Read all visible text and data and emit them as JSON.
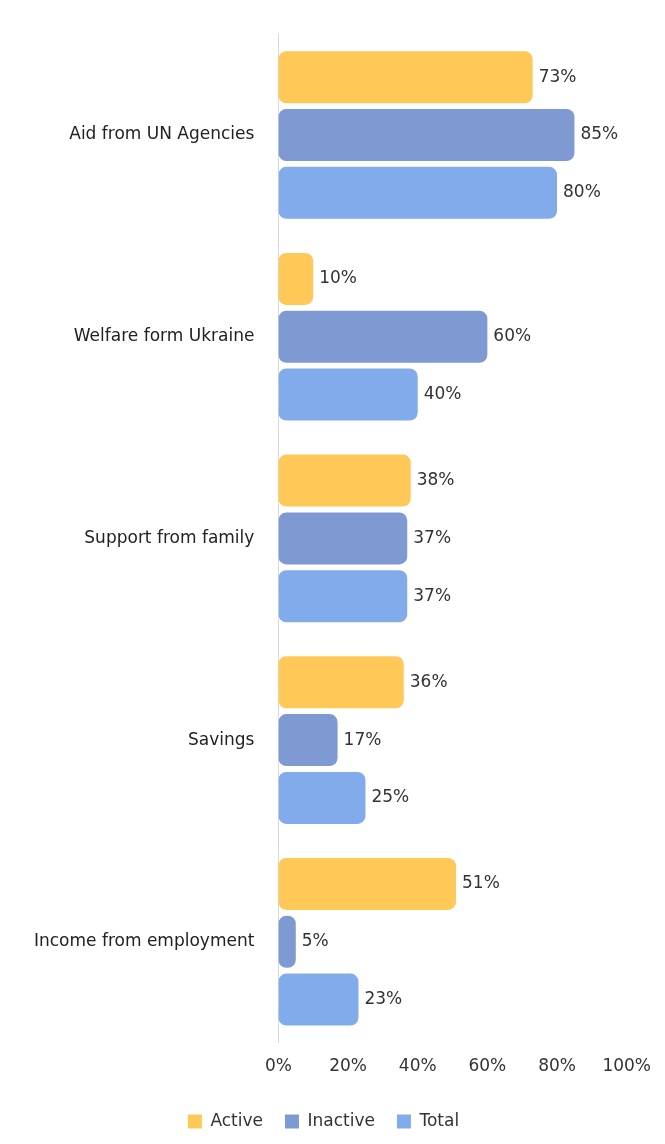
{
  "chart_data": {
    "type": "bar",
    "orientation": "horizontal",
    "categories": [
      "Aid from UN Agencies",
      "Welfare form Ukraine",
      "Support from family",
      "Savings",
      "Income from employment"
    ],
    "series": [
      {
        "name": "Active",
        "color": "#ffc857",
        "values": [
          73,
          10,
          38,
          36,
          51
        ],
        "value_labels": [
          "73%",
          "10%",
          "38%",
          "36%",
          "51%"
        ]
      },
      {
        "name": "Inactive",
        "color": "#7f9ad3",
        "values": [
          85,
          60,
          37,
          17,
          5
        ],
        "value_labels": [
          "85%",
          "60%",
          "37%",
          "17%",
          "5%"
        ]
      },
      {
        "name": "Total",
        "color": "#82abeb",
        "values": [
          80,
          40,
          37,
          25,
          23
        ],
        "value_labels": [
          "80%",
          "40%",
          "37%",
          "25%",
          "23%"
        ]
      }
    ],
    "xlim": [
      0,
      100
    ],
    "xticks": [
      {
        "value": 0,
        "label": "0%"
      },
      {
        "value": 20,
        "label": "20%"
      },
      {
        "value": 40,
        "label": "40%"
      },
      {
        "value": 60,
        "label": "60%"
      },
      {
        "value": 80,
        "label": "80%"
      },
      {
        "value": 100,
        "label": "100%"
      }
    ],
    "grid": false,
    "legend": "bottom"
  }
}
